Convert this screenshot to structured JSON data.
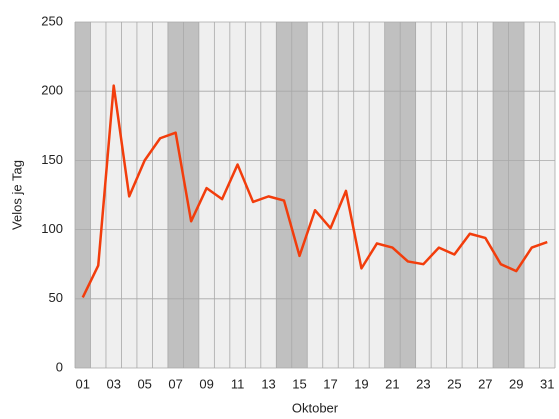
{
  "chart_data": {
    "type": "line",
    "xlabel": "Oktober",
    "ylabel": "Velos je Tag",
    "categories": [
      "01",
      null,
      "03",
      null,
      "05",
      null,
      "07",
      null,
      "09",
      null,
      "11",
      null,
      "13",
      null,
      "15",
      null,
      "17",
      null,
      "19",
      null,
      "21",
      null,
      "23",
      null,
      "25",
      null,
      "27",
      null,
      "29",
      null,
      "31"
    ],
    "series": [
      {
        "name": "Velos",
        "color": "#f23d0c",
        "values": [
          51,
          74,
          204,
          124,
          150,
          166,
          170,
          106,
          130,
          122,
          147,
          120,
          124,
          121,
          81,
          114,
          101,
          128,
          72,
          90,
          87,
          77,
          75,
          87,
          82,
          97,
          94,
          75,
          70,
          87,
          91
        ]
      }
    ],
    "ylim": [
      0,
      250
    ],
    "yticks": [
      0,
      50,
      100,
      150,
      200,
      250
    ],
    "grid": true,
    "shaded_categories": [
      0,
      6,
      7,
      13,
      14,
      20,
      21,
      27,
      28
    ],
    "shade_color": "#c0c0c0"
  }
}
